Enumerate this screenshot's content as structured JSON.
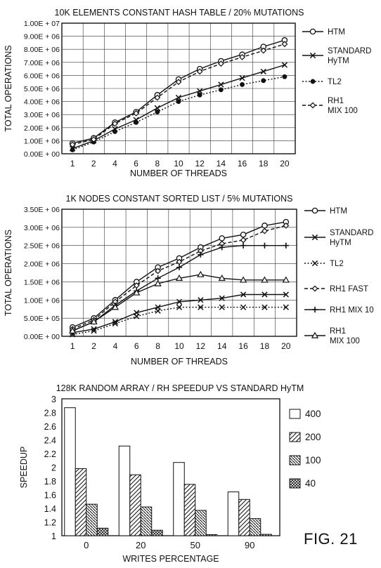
{
  "figure_label": "FIG. 21",
  "chart_data": [
    {
      "type": "line",
      "title": "10K ELEMENTS CONSTANT HASH TABLE / 20% MUTATIONS",
      "xlabel": "NUMBER OF THREADS",
      "ylabel": "TOTAL OPERATIONS",
      "x": [
        1,
        2,
        4,
        6,
        8,
        10,
        12,
        14,
        16,
        18,
        20
      ],
      "ylim": [
        0,
        10000000
      ],
      "y_ticks": [
        "0.00E + 00",
        "1.00E + 06",
        "2.00E + 06",
        "3.00E + 06",
        "4.00E + 06",
        "5.00E + 06",
        "6.00E + 06",
        "7.00E + 06",
        "8.00E + 06",
        "9.00E + 06",
        "1.00E + 07"
      ],
      "x_ticks": [
        "1",
        "2",
        "4",
        "6",
        "8",
        "10",
        "12",
        "14",
        "16",
        "18",
        "20"
      ],
      "grid": true,
      "legend_position": "right",
      "series": [
        {
          "name": "HTM",
          "marker": "circle",
          "dash": "solid",
          "values": [
            800000,
            1200000,
            2400000,
            3200000,
            4500000,
            5700000,
            6500000,
            7100000,
            7600000,
            8200000,
            8700000
          ]
        },
        {
          "name": "STANDARD HyTM",
          "marker": "x",
          "dash": "solid",
          "values": [
            400000,
            1000000,
            1900000,
            2600000,
            3500000,
            4300000,
            4800000,
            5300000,
            5800000,
            6300000,
            6800000
          ]
        },
        {
          "name": "TL2",
          "marker": "bullet",
          "dash": "dotted",
          "values": [
            300000,
            900000,
            1700000,
            2400000,
            3200000,
            4000000,
            4500000,
            4900000,
            5300000,
            5600000,
            5900000
          ]
        },
        {
          "name": "RH1 MIX 100",
          "marker": "diamond",
          "dash": "dashed",
          "values": [
            700000,
            1100000,
            2300000,
            3100000,
            4300000,
            5500000,
            6300000,
            6900000,
            7400000,
            7900000,
            8400000
          ]
        }
      ]
    },
    {
      "type": "line",
      "title": "1K NODES CONSTANT SORTED LIST / 5% MUTATIONS",
      "xlabel": "NUMBER OF THREADS",
      "ylabel": "TOTAL OPERATIONS",
      "x": [
        1,
        2,
        4,
        6,
        8,
        10,
        12,
        14,
        16,
        18,
        20
      ],
      "ylim": [
        0,
        3500000
      ],
      "y_ticks": [
        "0.00E + 00",
        "5.00E + 05",
        "1.00E + 06",
        "1.50E + 06",
        "2.00E + 06",
        "2.50E + 06",
        "3.00E + 06",
        "3.50E + 06"
      ],
      "x_ticks": [
        "1",
        "2",
        "4",
        "6",
        "8",
        "10",
        "12",
        "14",
        "16",
        "18",
        "20"
      ],
      "grid": true,
      "legend_position": "right",
      "series": [
        {
          "name": "HTM",
          "marker": "circle",
          "dash": "solid",
          "values": [
            250000,
            500000,
            1000000,
            1500000,
            1900000,
            2150000,
            2450000,
            2700000,
            2800000,
            3050000,
            3150000
          ]
        },
        {
          "name": "STANDARD HyTM",
          "marker": "x",
          "dash": "solid",
          "values": [
            100000,
            200000,
            400000,
            650000,
            800000,
            950000,
            1000000,
            1050000,
            1150000,
            1150000,
            1150000
          ]
        },
        {
          "name": "TL2",
          "marker": "x",
          "dash": "dotted",
          "values": [
            50000,
            150000,
            350000,
            550000,
            700000,
            800000,
            800000,
            800000,
            800000,
            800000,
            800000
          ]
        },
        {
          "name": "RH1 FAST",
          "marker": "diamond",
          "dash": "dashed",
          "values": [
            200000,
            450000,
            950000,
            1400000,
            1800000,
            2050000,
            2350000,
            2550000,
            2650000,
            2900000,
            3050000
          ]
        },
        {
          "name": "RH1 MIX 10",
          "marker": "plus",
          "dash": "solid",
          "values": [
            150000,
            400000,
            850000,
            1250000,
            1600000,
            1900000,
            2250000,
            2450000,
            2500000,
            2500000,
            2500000
          ]
        },
        {
          "name": "RH1 MIX 100",
          "marker": "triangle",
          "dash": "solid",
          "values": [
            150000,
            400000,
            800000,
            1200000,
            1450000,
            1600000,
            1700000,
            1600000,
            1550000,
            1550000,
            1550000
          ]
        }
      ]
    },
    {
      "type": "bar",
      "title": "128K RANDOM ARRAY / RH SPEEDUP VS STANDARD HyTM",
      "xlabel": "WRITES PERCENTAGE",
      "ylabel": "SPEEDUP",
      "categories": [
        "0",
        "20",
        "50",
        "90"
      ],
      "ylim": [
        1,
        3
      ],
      "y_ticks": [
        "1",
        "1.2",
        "1.4",
        "1.6",
        "1.8",
        "2",
        "2.2",
        "2.4",
        "2.6",
        "2.8",
        "3"
      ],
      "grid": false,
      "legend_position": "right",
      "series": [
        {
          "name": "400",
          "pattern": "white",
          "values": [
            2.87,
            2.31,
            2.07,
            1.64
          ]
        },
        {
          "name": "200",
          "pattern": "hatch",
          "values": [
            1.98,
            1.89,
            1.75,
            1.53
          ]
        },
        {
          "name": "100",
          "pattern": "dense-hatch",
          "values": [
            1.46,
            1.42,
            1.37,
            1.25
          ]
        },
        {
          "name": "40",
          "pattern": "crosshatch",
          "values": [
            1.11,
            1.08,
            1.0,
            1.02
          ]
        }
      ]
    }
  ]
}
